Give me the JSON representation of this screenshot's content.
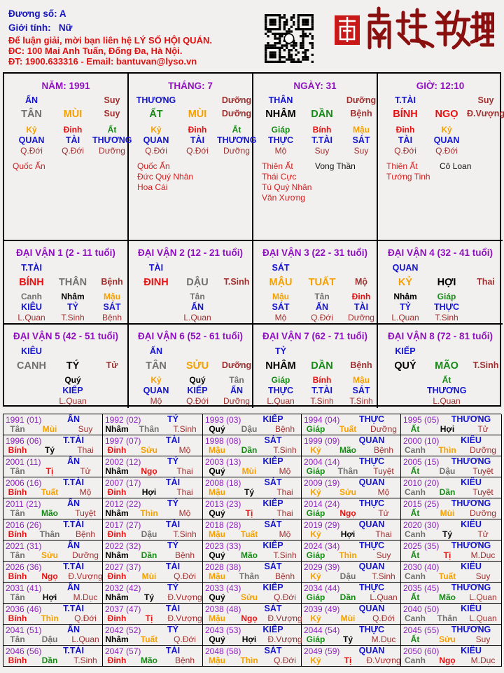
{
  "header": {
    "path_label": "Đương số: A",
    "gender_label": "Giới tính:",
    "gender_value": "Nữ",
    "contact_line1": "Để luận giải, mời bạn liên hệ LÝ SỐ HỘI QUÁN.",
    "contact_line2": "ĐC: 100 Mai Anh Tuấn, Đống Đa, Hà Nội.",
    "contact_line3": "ĐT: 1900.633316 - Email: bantuvan@lyso.vn",
    "logo_text": "南越數理"
  },
  "colors": {
    "wood": "#158a15",
    "fire": "#e81010",
    "earth": "#f5a000",
    "metal": "#707070",
    "water": "#000000",
    "title": "#9010c0",
    "god": "#1414d0",
    "stage": "#a03030"
  },
  "elements": {
    "giáp": "wood",
    "ất": "wood",
    "dần": "wood",
    "mão": "wood",
    "bính": "fire",
    "đinh": "fire",
    "tị": "fire",
    "ngọ": "fire",
    "mậu": "earth",
    "kỷ": "earth",
    "thìn": "earth",
    "tuất": "earth",
    "sửu": "earth",
    "mùi": "earth",
    "canh": "metal",
    "tân": "metal",
    "thân": "metal",
    "dậu": "metal",
    "nhâm": "water",
    "quý": "water",
    "tý": "water",
    "hợi": "water"
  },
  "pillars": [
    {
      "title": "NĂM: 1991",
      "god": "ẤN",
      "top_stage": "Suy",
      "stem": "TÂN",
      "branch": "MÙI",
      "stage": "Suy",
      "hidden": [
        "Kỷ",
        "Đinh",
        "Ất"
      ],
      "hidden_gods": [
        "QUAN",
        "TÀI",
        "THƯƠNG"
      ],
      "hidden_stages": [
        "Q.Đới",
        "Q.Đới",
        "Dưỡng"
      ],
      "stars_left": [
        "Quốc Ấn"
      ],
      "stars_right": []
    },
    {
      "title": "THÁNG: 7",
      "god": "THƯƠNG",
      "top_stage": "Dưỡng",
      "stem": "ẤT",
      "branch": "MÙI",
      "stage": "Dưỡng",
      "hidden": [
        "Kỷ",
        "Đinh",
        "Ất"
      ],
      "hidden_gods": [
        "QUAN",
        "TÀI",
        "THƯƠNG"
      ],
      "hidden_stages": [
        "Q.Đới",
        "Q.Đới",
        "Dưỡng"
      ],
      "stars_left": [
        "Quốc Ấn",
        "Đức Quý Nhân",
        "Hoa Cái"
      ],
      "stars_right": []
    },
    {
      "title": "NGÀY: 31",
      "god": "THÂN",
      "top_stage": "Dưỡng",
      "stem": "NHÂM",
      "branch": "DẦN",
      "stage": "Bệnh",
      "hidden": [
        "Giáp",
        "Bính",
        "Mậu"
      ],
      "hidden_gods": [
        "THỰC",
        "T.TÀI",
        "SÁT"
      ],
      "hidden_stages": [
        "Mộ",
        "Suy",
        "Suy"
      ],
      "stars_left": [
        "Thiên Ất",
        "Thái Cực",
        "Tú Quý Nhân",
        "Văn Xương"
      ],
      "stars_right": [
        "Vong Thần"
      ]
    },
    {
      "title": "GIỜ: 12:10",
      "god": "T.TÀI",
      "top_stage": "Suy",
      "stem": "BÍNH",
      "branch": "NGỌ",
      "stage": "Đ.Vượng",
      "hidden": [
        "Đinh",
        "Kỷ",
        ""
      ],
      "hidden_gods": [
        "TÀI",
        "QUAN",
        ""
      ],
      "hidden_stages": [
        "Q.Đới",
        "Q.Đới",
        ""
      ],
      "stars_left": [
        "Thiên Ất",
        "Tướng Tinh"
      ],
      "stars_right": [
        "Cô Loan"
      ]
    }
  ],
  "dai_van": [
    {
      "title": "ĐẠI VẬN 1 (2 - 11 tuổi)",
      "god": "T.TÀI",
      "stem": "BÍNH",
      "branch": "THÂN",
      "stage": "Bệnh",
      "hidden": [
        "Canh",
        "Nhâm",
        "Mậu"
      ],
      "hidden_gods": [
        "KIÊU",
        "TỶ",
        "SÁT"
      ],
      "hidden_stages": [
        "L.Quan",
        "T.Sinh",
        "Bệnh"
      ]
    },
    {
      "title": "ĐẠI VẬN 2 (12 - 21 tuổi)",
      "god": "TÀI",
      "stem": "ĐINH",
      "branch": "DẬU",
      "stage": "T.Sinh",
      "hidden": [
        "",
        "Tân",
        ""
      ],
      "hidden_gods": [
        "",
        "ẤN",
        ""
      ],
      "hidden_stages": [
        "",
        "L.Quan",
        ""
      ]
    },
    {
      "title": "ĐẠI VẬN 3 (22 - 31 tuổi)",
      "god": "SÁT",
      "stem": "MẬU",
      "branch": "TUẤT",
      "stage": "Mộ",
      "hidden": [
        "Mậu",
        "Tân",
        "Đinh"
      ],
      "hidden_gods": [
        "SÁT",
        "ẤN",
        "TÀI"
      ],
      "hidden_stages": [
        "Mộ",
        "Q.Đới",
        "Dưỡng"
      ]
    },
    {
      "title": "ĐẠI VẬN 4 (32 - 41 tuổi)",
      "god": "QUAN",
      "stem": "KỶ",
      "branch": "HỢI",
      "stage": "Thai",
      "hidden": [
        "Nhâm",
        "Giáp",
        ""
      ],
      "hidden_gods": [
        "TỶ",
        "THỰC",
        ""
      ],
      "hidden_stages": [
        "L.Quan",
        "T.Sinh",
        ""
      ]
    },
    {
      "title": "ĐẠI VẬN 5 (42 - 51 tuổi)",
      "god": "KIÊU",
      "stem": "CANH",
      "branch": "TÝ",
      "stage": "Tử",
      "hidden": [
        "",
        "Quý",
        ""
      ],
      "hidden_gods": [
        "",
        "KIẾP",
        ""
      ],
      "hidden_stages": [
        "",
        "L.Quan",
        ""
      ]
    },
    {
      "title": "ĐẠI VẬN 6 (52 - 61 tuổi)",
      "god": "ẤN",
      "stem": "TÂN",
      "branch": "SỬU",
      "stage": "Dưỡng",
      "hidden": [
        "Kỷ",
        "Quý",
        "Tân"
      ],
      "hidden_gods": [
        "QUAN",
        "KIẾP",
        "ẤN"
      ],
      "hidden_stages": [
        "Mộ",
        "Q.Đới",
        "Dưỡng"
      ]
    },
    {
      "title": "ĐẠI VẬN 7 (62 - 71 tuổi)",
      "god": "TỶ",
      "stem": "NHÂM",
      "branch": "DẦN",
      "stage": "Bệnh",
      "hidden": [
        "Giáp",
        "Bính",
        "Mậu"
      ],
      "hidden_gods": [
        "THỰC",
        "T.TÀI",
        "SÁT"
      ],
      "hidden_stages": [
        "L.Quan",
        "T.Sinh",
        "T.Sinh"
      ]
    },
    {
      "title": "ĐẠI VẬN 8 (72 - 81 tuổi)",
      "god": "KIẾP",
      "stem": "QUÝ",
      "branch": "MÃO",
      "stage": "T.Sinh",
      "hidden": [
        "",
        "Ất",
        ""
      ],
      "hidden_gods": [
        "",
        "THƯƠNG",
        ""
      ],
      "hidden_stages": [
        "",
        "L.Quan",
        ""
      ]
    }
  ],
  "years": [
    [
      "1991 (01)",
      "ẤN",
      "Tân",
      "Mùi",
      "Suy"
    ],
    [
      "1992 (02)",
      "TỶ",
      "Nhâm",
      "Thân",
      "T.Sinh"
    ],
    [
      "1993 (03)",
      "KIẾP",
      "Quý",
      "Dậu",
      "Bệnh"
    ],
    [
      "1994 (04)",
      "THỰC",
      "Giáp",
      "Tuất",
      "Dưỡng"
    ],
    [
      "1995 (05)",
      "THƯƠNG",
      "Ất",
      "Hợi",
      "Tử"
    ],
    [
      "1996 (06)",
      "T.TÀI",
      "Bính",
      "Tý",
      "Thai"
    ],
    [
      "1997 (07)",
      "TÀI",
      "Đinh",
      "Sửu",
      "Mộ"
    ],
    [
      "1998 (08)",
      "SÁT",
      "Mậu",
      "Dần",
      "T.Sinh"
    ],
    [
      "1999 (09)",
      "QUAN",
      "Kỷ",
      "Mão",
      "Bệnh"
    ],
    [
      "2000 (10)",
      "KIÊU",
      "Canh",
      "Thìn",
      "Dưỡng"
    ],
    [
      "2001 (11)",
      "ẤN",
      "Tân",
      "Tị",
      "Tử"
    ],
    [
      "2002 (12)",
      "TỶ",
      "Nhâm",
      "Ngọ",
      "Thai"
    ],
    [
      "2003 (13)",
      "KIẾP",
      "Quý",
      "Mùi",
      "Mộ"
    ],
    [
      "2004 (14)",
      "THỰC",
      "Giáp",
      "Thân",
      "Tuyệt"
    ],
    [
      "2005 (15)",
      "THƯƠNG",
      "Ất",
      "Dậu",
      "Tuyệt"
    ],
    [
      "2006 (16)",
      "T.TÀI",
      "Bính",
      "Tuất",
      "Mộ"
    ],
    [
      "2007 (17)",
      "TÀI",
      "Đinh",
      "Hợi",
      "Thai"
    ],
    [
      "2008 (18)",
      "SÁT",
      "Mậu",
      "Tý",
      "Thai"
    ],
    [
      "2009 (19)",
      "QUAN",
      "Kỷ",
      "Sửu",
      "Mộ"
    ],
    [
      "2010 (20)",
      "KIÊU",
      "Canh",
      "Dần",
      "Tuyệt"
    ],
    [
      "2011 (21)",
      "ẤN",
      "Tân",
      "Mão",
      "Tuyệt"
    ],
    [
      "2012 (22)",
      "TỶ",
      "Nhâm",
      "Thìn",
      "Mộ"
    ],
    [
      "2013 (23)",
      "KIẾP",
      "Quý",
      "Tị",
      "Thai"
    ],
    [
      "2014 (24)",
      "THỰC",
      "Giáp",
      "Ngọ",
      "Tử"
    ],
    [
      "2015 (25)",
      "THƯƠNG",
      "Ất",
      "Mùi",
      "Dưỡng"
    ],
    [
      "2016 (26)",
      "T.TÀI",
      "Bính",
      "Thân",
      "Bệnh"
    ],
    [
      "2017 (27)",
      "TÀI",
      "Đinh",
      "Dậu",
      "T.Sinh"
    ],
    [
      "2018 (28)",
      "SÁT",
      "Mậu",
      "Tuất",
      "Mộ"
    ],
    [
      "2019 (29)",
      "QUAN",
      "Kỷ",
      "Hợi",
      "Thai"
    ],
    [
      "2020 (30)",
      "KIÊU",
      "Canh",
      "Tý",
      "Tử"
    ],
    [
      "2021 (31)",
      "ẤN",
      "Tân",
      "Sửu",
      "Dưỡng"
    ],
    [
      "2022 (32)",
      "TỶ",
      "Nhâm",
      "Dần",
      "Bệnh"
    ],
    [
      "2023 (33)",
      "KIẾP",
      "Quý",
      "Mão",
      "T.Sinh"
    ],
    [
      "2024 (34)",
      "THỰC",
      "Giáp",
      "Thìn",
      "Suy"
    ],
    [
      "2025 (35)",
      "THƯƠNG",
      "Ất",
      "Tị",
      "M.Dục"
    ],
    [
      "2026 (36)",
      "T.TÀI",
      "Bính",
      "Ngọ",
      "Đ.Vượng"
    ],
    [
      "2027 (37)",
      "TÀI",
      "Đinh",
      "Mùi",
      "Q.Đới"
    ],
    [
      "2028 (38)",
      "SÁT",
      "Mậu",
      "Thân",
      "Bệnh"
    ],
    [
      "2029 (39)",
      "QUAN",
      "Kỷ",
      "Dậu",
      "T.Sinh"
    ],
    [
      "2030 (40)",
      "KIÊU",
      "Canh",
      "Tuất",
      "Suy"
    ],
    [
      "2031 (41)",
      "ẤN",
      "Tân",
      "Hợi",
      "M.Dục"
    ],
    [
      "2032 (42)",
      "TỶ",
      "Nhâm",
      "Tý",
      "Đ.Vượng"
    ],
    [
      "2033 (43)",
      "KIẾP",
      "Quý",
      "Sửu",
      "Q.Đới"
    ],
    [
      "2034 (44)",
      "THỰC",
      "Giáp",
      "Dần",
      "L.Quan"
    ],
    [
      "2035 (45)",
      "THƯƠNG",
      "Ất",
      "Mão",
      "L.Quan"
    ],
    [
      "2036 (46)",
      "T.TÀI",
      "Bính",
      "Thìn",
      "Q.Đới"
    ],
    [
      "2037 (47)",
      "TÀI",
      "Đinh",
      "Tị",
      "Đ.Vượng"
    ],
    [
      "2038 (48)",
      "SÁT",
      "Mậu",
      "Ngọ",
      "Đ.Vượng"
    ],
    [
      "2039 (49)",
      "QUAN",
      "Kỷ",
      "Mùi",
      "Q.Đới"
    ],
    [
      "2040 (50)",
      "KIÊU",
      "Canh",
      "Thân",
      "L.Quan"
    ],
    [
      "2041 (51)",
      "ẤN",
      "Tân",
      "Dậu",
      "L.Quan"
    ],
    [
      "2042 (52)",
      "TỶ",
      "Nhâm",
      "Tuất",
      "Q.Đới"
    ],
    [
      "2043 (53)",
      "KIẾP",
      "Quý",
      "Hợi",
      "Đ.Vượng"
    ],
    [
      "2044 (54)",
      "THỰC",
      "Giáp",
      "Tý",
      "M.Dục"
    ],
    [
      "2045 (55)",
      "THƯƠNG",
      "Ất",
      "Sửu",
      "Suy"
    ],
    [
      "2046 (56)",
      "T.TÀI",
      "Bính",
      "Dần",
      "T.Sinh"
    ],
    [
      "2047 (57)",
      "TÀI",
      "Đinh",
      "Mão",
      "Bệnh"
    ],
    [
      "2048 (58)",
      "SÁT",
      "Mậu",
      "Thìn",
      "Q.Đới"
    ],
    [
      "2049 (59)",
      "QUAN",
      "Kỷ",
      "Tị",
      "Đ.Vượng"
    ],
    [
      "2050 (60)",
      "KIÊU",
      "Canh",
      "Ngọ",
      "M.Dục"
    ]
  ]
}
